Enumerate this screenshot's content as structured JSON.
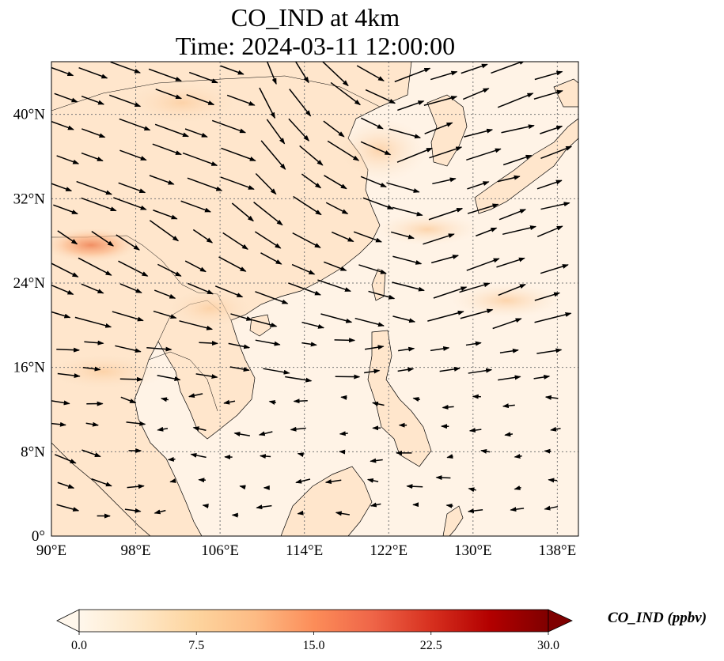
{
  "title_line1": "CO_IND at 4km",
  "title_line2": "Time: 2024-03-11 12:00:00",
  "map": {
    "extent": {
      "lon_min": 90,
      "lon_max": 140,
      "lat_min": 0,
      "lat_max": 45
    },
    "lon_ticks": [
      "90°E",
      "98°E",
      "106°E",
      "114°E",
      "122°E",
      "130°E",
      "138°E"
    ],
    "lon_values": [
      90,
      98,
      106,
      114,
      122,
      130,
      138
    ],
    "lat_ticks": [
      "0°",
      "8°N",
      "16°N",
      "24°N",
      "32°N",
      "40°N"
    ],
    "lat_values": [
      0,
      8,
      16,
      24,
      32,
      40
    ],
    "gridlines": "dotted",
    "field": "CO_IND concentration (ppbv), wind vectors overlaid",
    "highlight_region": "elevated values near 92°E–96°E, 27°N–29°N"
  },
  "colorbar": {
    "label": "CO_IND (ppbv)",
    "ticks": [
      "0.0",
      "7.5",
      "15.0",
      "22.5",
      "30.0"
    ],
    "tick_values": [
      0,
      7.5,
      15,
      22.5,
      30
    ],
    "min": 0,
    "max": 30,
    "colormap": "OrRd",
    "extend": "both",
    "colors": [
      "#fff7ec",
      "#fee8c8",
      "#fdd49e",
      "#fdbb84",
      "#fc8d59",
      "#ef6548",
      "#d7301f",
      "#b30000",
      "#7f0000"
    ]
  },
  "colors": {
    "ocean_fill": "#fff3e6",
    "land_fill": "#ffe8d0",
    "coast": "#000000",
    "grid": "#777777",
    "arrow": "#000000"
  }
}
